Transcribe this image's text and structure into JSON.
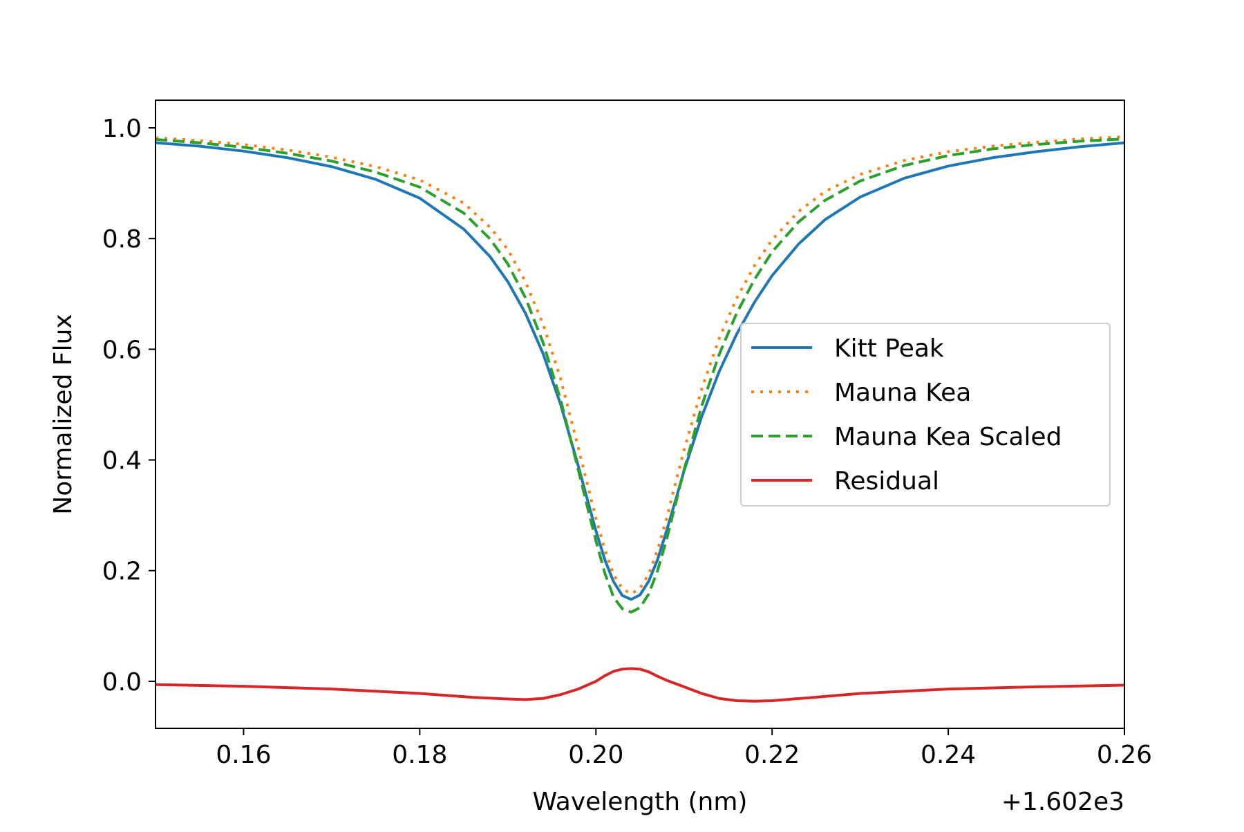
{
  "chart_data": {
    "type": "line",
    "title": "",
    "xlabel": "Wavelength (nm)",
    "ylabel": "Normalized Flux",
    "x_offset_label": "+1.602e3",
    "xlim": [
      0.15,
      0.26
    ],
    "ylim": [
      -0.085,
      1.05
    ],
    "xticks": [
      0.16,
      0.18,
      0.2,
      0.22,
      0.24,
      0.26
    ],
    "xtick_labels": [
      "0.16",
      "0.18",
      "0.20",
      "0.22",
      "0.24",
      "0.26"
    ],
    "yticks": [
      0.0,
      0.2,
      0.4,
      0.6,
      0.8,
      1.0
    ],
    "ytick_labels": [
      "0.0",
      "0.2",
      "0.4",
      "0.6",
      "0.8",
      "1.0"
    ],
    "grid": false,
    "legend_position": "center-right",
    "line_center": 0.204,
    "series": [
      {
        "name": "Kitt Peak",
        "color": "#1f77b4",
        "style": "solid",
        "x": [
          0.15,
          0.155,
          0.16,
          0.165,
          0.17,
          0.175,
          0.18,
          0.185,
          0.188,
          0.19,
          0.192,
          0.194,
          0.196,
          0.198,
          0.199,
          0.2,
          0.201,
          0.202,
          0.203,
          0.204,
          0.205,
          0.206,
          0.207,
          0.208,
          0.209,
          0.21,
          0.212,
          0.214,
          0.216,
          0.218,
          0.22,
          0.223,
          0.226,
          0.23,
          0.235,
          0.24,
          0.245,
          0.25,
          0.255,
          0.26
        ],
        "y": [
          0.973,
          0.967,
          0.958,
          0.946,
          0.93,
          0.907,
          0.873,
          0.817,
          0.767,
          0.722,
          0.665,
          0.592,
          0.5,
          0.389,
          0.33,
          0.272,
          0.22,
          0.18,
          0.155,
          0.148,
          0.156,
          0.181,
          0.22,
          0.271,
          0.325,
          0.38,
          0.478,
          0.56,
          0.628,
          0.685,
          0.733,
          0.79,
          0.834,
          0.875,
          0.909,
          0.931,
          0.946,
          0.957,
          0.966,
          0.973
        ]
      },
      {
        "name": "Mauna Kea",
        "color": "#ff7f0e",
        "style": "dotted",
        "x": [
          0.15,
          0.155,
          0.16,
          0.165,
          0.17,
          0.175,
          0.18,
          0.185,
          0.188,
          0.19,
          0.192,
          0.194,
          0.196,
          0.198,
          0.199,
          0.2,
          0.201,
          0.202,
          0.203,
          0.204,
          0.205,
          0.206,
          0.207,
          0.208,
          0.209,
          0.21,
          0.212,
          0.214,
          0.216,
          0.218,
          0.22,
          0.223,
          0.226,
          0.23,
          0.235,
          0.24,
          0.245,
          0.25,
          0.255,
          0.26
        ],
        "y": [
          0.982,
          0.977,
          0.97,
          0.96,
          0.947,
          0.93,
          0.906,
          0.864,
          0.82,
          0.78,
          0.722,
          0.645,
          0.546,
          0.422,
          0.358,
          0.295,
          0.238,
          0.193,
          0.167,
          0.158,
          0.168,
          0.194,
          0.237,
          0.293,
          0.356,
          0.418,
          0.528,
          0.62,
          0.693,
          0.751,
          0.798,
          0.849,
          0.885,
          0.916,
          0.941,
          0.957,
          0.967,
          0.974,
          0.98,
          0.984
        ]
      },
      {
        "name": "Mauna Kea Scaled",
        "color": "#2ca02c",
        "style": "dashed",
        "x": [
          0.15,
          0.155,
          0.16,
          0.165,
          0.17,
          0.175,
          0.18,
          0.185,
          0.188,
          0.19,
          0.192,
          0.194,
          0.196,
          0.198,
          0.199,
          0.2,
          0.201,
          0.202,
          0.203,
          0.204,
          0.205,
          0.206,
          0.207,
          0.208,
          0.209,
          0.21,
          0.212,
          0.214,
          0.216,
          0.218,
          0.22,
          0.223,
          0.226,
          0.23,
          0.235,
          0.24,
          0.245,
          0.25,
          0.255,
          0.26
        ],
        "y": [
          0.979,
          0.973,
          0.965,
          0.954,
          0.94,
          0.92,
          0.893,
          0.846,
          0.799,
          0.754,
          0.693,
          0.612,
          0.508,
          0.382,
          0.317,
          0.254,
          0.196,
          0.152,
          0.131,
          0.125,
          0.133,
          0.158,
          0.2,
          0.255,
          0.318,
          0.382,
          0.497,
          0.591,
          0.666,
          0.726,
          0.776,
          0.83,
          0.869,
          0.904,
          0.932,
          0.95,
          0.962,
          0.97,
          0.976,
          0.98
        ]
      },
      {
        "name": "Residual",
        "color": "#d62728",
        "style": "solid",
        "x": [
          0.15,
          0.16,
          0.17,
          0.18,
          0.186,
          0.19,
          0.192,
          0.194,
          0.196,
          0.198,
          0.2,
          0.201,
          0.202,
          0.203,
          0.204,
          0.205,
          0.206,
          0.207,
          0.208,
          0.21,
          0.212,
          0.214,
          0.216,
          0.218,
          0.22,
          0.224,
          0.23,
          0.24,
          0.25,
          0.26
        ],
        "y": [
          -0.006,
          -0.009,
          -0.014,
          -0.022,
          -0.029,
          -0.032,
          -0.033,
          -0.031,
          -0.024,
          -0.014,
          0.0,
          0.01,
          0.018,
          0.022,
          0.023,
          0.022,
          0.017,
          0.009,
          0.002,
          -0.01,
          -0.022,
          -0.031,
          -0.035,
          -0.036,
          -0.035,
          -0.03,
          -0.022,
          -0.014,
          -0.01,
          -0.007
        ]
      }
    ]
  }
}
